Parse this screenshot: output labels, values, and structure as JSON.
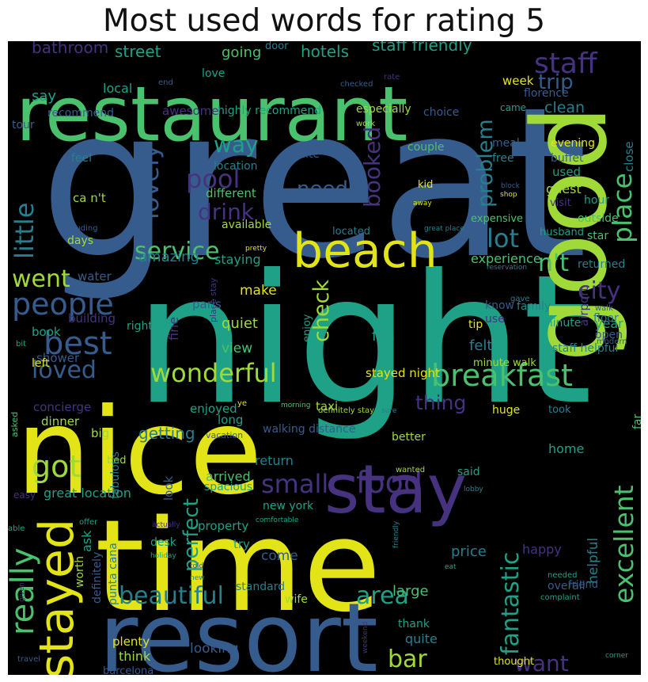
{
  "title": "Most used words for rating 5",
  "cloud": {
    "background": "#000000",
    "palette": {
      "y": "#e2e418",
      "lg": "#a0da39",
      "g": "#4ac16d",
      "tg": "#1fa187",
      "t": "#277f8e",
      "b": "#365c8d",
      "i": "#46327e",
      "p": "#440154"
    },
    "words": [
      {
        "text": "great",
        "color": "b"
      },
      {
        "text": "night",
        "color": "tg"
      },
      {
        "text": "time",
        "color": "y"
      },
      {
        "text": "nice",
        "color": "y"
      },
      {
        "text": "resort",
        "color": "b"
      },
      {
        "text": "restaurant",
        "color": "g"
      },
      {
        "text": "good",
        "color": "lg"
      },
      {
        "text": "stay",
        "color": "i"
      },
      {
        "text": "beach",
        "color": "y"
      },
      {
        "text": "staff",
        "color": "i"
      },
      {
        "text": "breakfast",
        "color": "g"
      },
      {
        "text": "stayed",
        "color": "y"
      },
      {
        "text": "wonderful",
        "color": "lg"
      },
      {
        "text": "service",
        "color": "g"
      },
      {
        "text": "people",
        "color": "b"
      },
      {
        "text": "best",
        "color": "b"
      },
      {
        "text": "loved",
        "color": "b"
      },
      {
        "text": "food",
        "color": "i"
      },
      {
        "text": "small",
        "color": "i"
      },
      {
        "text": "got",
        "color": "lg"
      },
      {
        "text": "lot",
        "color": "t"
      },
      {
        "text": "really",
        "color": "g"
      },
      {
        "text": "excellent",
        "color": "g"
      },
      {
        "text": "fantastic",
        "color": "tg"
      },
      {
        "text": "area",
        "color": "tg"
      },
      {
        "text": "beautiful",
        "color": "t"
      },
      {
        "text": "bar",
        "color": "lg"
      },
      {
        "text": "want",
        "color": "i"
      },
      {
        "text": "place",
        "color": "g"
      },
      {
        "text": "little",
        "color": "t"
      },
      {
        "text": "lovely",
        "color": "b"
      },
      {
        "text": "pool",
        "color": "i"
      },
      {
        "text": "drink",
        "color": "i"
      },
      {
        "text": "way",
        "color": "tg"
      },
      {
        "text": "need",
        "color": "b"
      },
      {
        "text": "trip",
        "color": "b"
      },
      {
        "text": "went",
        "color": "lg"
      },
      {
        "text": "check",
        "color": "lg"
      },
      {
        "text": "n't",
        "color": "g"
      },
      {
        "text": "city",
        "color": "i"
      },
      {
        "text": "problem",
        "color": "t"
      },
      {
        "text": "booked",
        "color": "i"
      },
      {
        "text": "thing",
        "color": "i"
      },
      {
        "text": "perfect",
        "color": "tg"
      },
      {
        "text": "street",
        "color": "tg"
      },
      {
        "text": "hotels",
        "color": "tg"
      },
      {
        "text": "staff friendly",
        "color": "tg"
      },
      {
        "text": "bathroom",
        "color": "i"
      },
      {
        "text": "going",
        "color": "g"
      },
      {
        "text": "say",
        "color": "tg"
      },
      {
        "text": "local",
        "color": "tg"
      },
      {
        "text": "week",
        "color": "y"
      },
      {
        "text": "clean",
        "color": "t"
      },
      {
        "text": "love",
        "color": "tg"
      },
      {
        "text": "door",
        "color": "t"
      },
      {
        "text": "end",
        "color": "b"
      },
      {
        "text": "rate",
        "color": "i"
      },
      {
        "text": "checked",
        "color": "b"
      },
      {
        "text": "florence",
        "color": "b"
      },
      {
        "text": "recommend",
        "color": "b"
      },
      {
        "text": "awesome",
        "color": "i"
      },
      {
        "text": "highly recommend",
        "color": "tg"
      },
      {
        "text": "especially",
        "color": "lg"
      },
      {
        "text": "choice",
        "color": "b"
      },
      {
        "text": "came",
        "color": "tg"
      },
      {
        "text": "tour",
        "color": "b"
      },
      {
        "text": "work",
        "color": "lg"
      },
      {
        "text": "feel",
        "color": "t"
      },
      {
        "text": "suite",
        "color": "b"
      },
      {
        "text": "couple",
        "color": "g"
      },
      {
        "text": "meal",
        "color": "b"
      },
      {
        "text": "evening",
        "color": "y"
      },
      {
        "text": "close",
        "color": "t"
      },
      {
        "text": "free",
        "color": "t"
      },
      {
        "text": "buffet",
        "color": "b"
      },
      {
        "text": "location",
        "color": "t"
      },
      {
        "text": "used",
        "color": "tg"
      },
      {
        "text": "kid",
        "color": "y"
      },
      {
        "text": "block",
        "color": "b"
      },
      {
        "text": "different",
        "color": "g"
      },
      {
        "text": "guest",
        "color": "lg"
      },
      {
        "text": "shop",
        "color": "y"
      },
      {
        "text": "hour",
        "color": "tg"
      },
      {
        "text": "ca n't",
        "color": "lg"
      },
      {
        "text": "away",
        "color": "y"
      },
      {
        "text": "visit",
        "color": "i"
      },
      {
        "text": "expensive",
        "color": "g"
      },
      {
        "text": "outside",
        "color": "g"
      },
      {
        "text": "available",
        "color": "lg"
      },
      {
        "text": "including",
        "color": "b"
      },
      {
        "text": "great place",
        "color": "t"
      },
      {
        "text": "husband",
        "color": "tg"
      },
      {
        "text": "star",
        "color": "g"
      },
      {
        "text": "days",
        "color": "lg"
      },
      {
        "text": "located",
        "color": "t"
      },
      {
        "text": "amazing",
        "color": "t"
      },
      {
        "text": "staying",
        "color": "tg"
      },
      {
        "text": "experience",
        "color": "g"
      },
      {
        "text": "returned",
        "color": "t"
      },
      {
        "text": "reservation",
        "color": "t"
      },
      {
        "text": "pretty",
        "color": "y"
      },
      {
        "text": "water",
        "color": "b"
      },
      {
        "text": "make",
        "color": "y"
      },
      {
        "text": "place stay",
        "color": "i"
      },
      {
        "text": "know",
        "color": "b"
      },
      {
        "text": "gave",
        "color": "t"
      },
      {
        "text": "family",
        "color": "t"
      },
      {
        "text": "walk",
        "color": "b"
      },
      {
        "text": "paris",
        "color": "b"
      },
      {
        "text": "floor",
        "color": "t"
      },
      {
        "text": "use",
        "color": "i"
      },
      {
        "text": "airport",
        "color": "i"
      },
      {
        "text": "building",
        "color": "i"
      },
      {
        "text": "book",
        "color": "tg"
      },
      {
        "text": "right",
        "color": "tg"
      },
      {
        "text": "quiet",
        "color": "lg"
      },
      {
        "text": "fine",
        "color": "i"
      },
      {
        "text": "enjoy",
        "color": "tg"
      },
      {
        "text": "tip",
        "color": "y"
      },
      {
        "text": "minute",
        "color": "tg"
      },
      {
        "text": "year",
        "color": "tg"
      },
      {
        "text": "open",
        "color": "b"
      },
      {
        "text": "modern",
        "color": "b"
      },
      {
        "text": "bit",
        "color": "tg"
      },
      {
        "text": "view",
        "color": "g"
      },
      {
        "text": "fun",
        "color": "tg"
      },
      {
        "text": "felt",
        "color": "t"
      },
      {
        "text": "staff helpful",
        "color": "t"
      },
      {
        "text": "minute walk",
        "color": "lg"
      },
      {
        "text": "shower",
        "color": "b"
      },
      {
        "text": "left",
        "color": "y"
      },
      {
        "text": "stayed night",
        "color": "y"
      },
      {
        "text": "asked",
        "color": "g"
      },
      {
        "text": "concierge",
        "color": "i"
      },
      {
        "text": "ye",
        "color": "y"
      },
      {
        "text": "morning",
        "color": "g"
      },
      {
        "text": "taxi",
        "color": "lg"
      },
      {
        "text": "definitely stay",
        "color": "lg"
      },
      {
        "text": "sure",
        "color": "t"
      },
      {
        "text": "huge",
        "color": "y"
      },
      {
        "text": "took",
        "color": "t"
      },
      {
        "text": "far",
        "color": "g"
      },
      {
        "text": "dinner",
        "color": "lg"
      },
      {
        "text": "enjoyed",
        "color": "tg"
      },
      {
        "text": "long",
        "color": "tg"
      },
      {
        "text": "big",
        "color": "lg"
      },
      {
        "text": "getting",
        "color": "t"
      },
      {
        "text": "vacation",
        "color": "b"
      },
      {
        "text": "walking distance",
        "color": "b"
      },
      {
        "text": "look",
        "color": "b"
      },
      {
        "text": "better",
        "color": "lg"
      },
      {
        "text": "home",
        "color": "tg"
      },
      {
        "text": "bed",
        "color": "lg"
      },
      {
        "text": "arrived",
        "color": "g"
      },
      {
        "text": "return",
        "color": "t"
      },
      {
        "text": "wanted",
        "color": "lg"
      },
      {
        "text": "said",
        "color": "tg"
      },
      {
        "text": "easy",
        "color": "i"
      },
      {
        "text": "fabulous",
        "color": "t"
      },
      {
        "text": "spacious",
        "color": "tg"
      },
      {
        "text": "lobby",
        "color": "t"
      },
      {
        "text": "great location",
        "color": "tg"
      },
      {
        "text": "helpful",
        "color": "t"
      },
      {
        "text": "ask",
        "color": "tg"
      },
      {
        "text": "new york",
        "color": "tg"
      },
      {
        "text": "comfortable",
        "color": "tg"
      },
      {
        "text": "happy",
        "color": "i"
      },
      {
        "text": "offer",
        "color": "tg"
      },
      {
        "text": "property",
        "color": "tg"
      },
      {
        "text": "able",
        "color": "tg"
      },
      {
        "text": "actually",
        "color": "i"
      },
      {
        "text": "friendly",
        "color": "t"
      },
      {
        "text": "worth",
        "color": "lg"
      },
      {
        "text": "desk",
        "color": "tg"
      },
      {
        "text": "try",
        "color": "tg"
      },
      {
        "text": "holiday",
        "color": "tg"
      },
      {
        "text": "punta cana",
        "color": "t"
      },
      {
        "text": "definitely",
        "color": "b"
      },
      {
        "text": "come",
        "color": "b"
      },
      {
        "text": "told",
        "color": "b"
      },
      {
        "text": "price",
        "color": "t"
      },
      {
        "text": "eat",
        "color": "tg"
      },
      {
        "text": "needed",
        "color": "tg"
      },
      {
        "text": "overall",
        "color": "b"
      },
      {
        "text": "friend",
        "color": "b"
      },
      {
        "text": "standard",
        "color": "t"
      },
      {
        "text": "complaint",
        "color": "tg"
      },
      {
        "text": "new",
        "color": "t"
      },
      {
        "text": "large",
        "color": "g"
      },
      {
        "text": "given",
        "color": "i"
      },
      {
        "text": "wife",
        "color": "lg"
      },
      {
        "text": "plenty",
        "color": "y"
      },
      {
        "text": "thank",
        "color": "tg"
      },
      {
        "text": "quite",
        "color": "t"
      },
      {
        "text": "weekend",
        "color": "i"
      },
      {
        "text": "looking",
        "color": "b"
      },
      {
        "text": "think",
        "color": "lg"
      },
      {
        "text": "travel",
        "color": "b"
      },
      {
        "text": "barcelona",
        "color": "b"
      },
      {
        "text": "thought",
        "color": "y"
      },
      {
        "text": "corner",
        "color": "tg"
      }
    ]
  }
}
